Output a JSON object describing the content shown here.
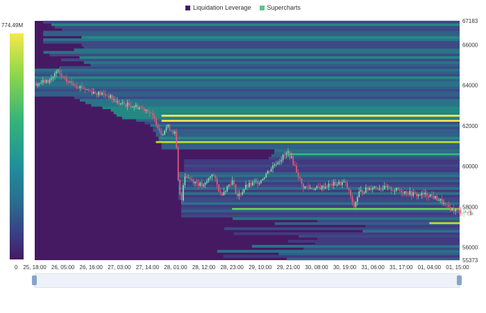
{
  "legend": [
    {
      "label": "Liquidation Leverage",
      "color": "#461a62"
    },
    {
      "label": "Supercharts",
      "color": "#5ec48a"
    }
  ],
  "colorbar": {
    "max_label": "774.49M",
    "min_label": "0"
  },
  "chart_data": {
    "type": "heatmap",
    "title": "",
    "y_labels": [
      "67183",
      "66000",
      "64000",
      "62000",
      "60000",
      "58000",
      "56000",
      "55373"
    ],
    "y_ticks": [
      67183,
      66000,
      64000,
      62000,
      60000,
      58000,
      56000,
      55373
    ],
    "ylim": [
      55373,
      67183
    ],
    "x_labels": [
      "25, 18:00",
      "26, 05:00",
      "26, 16:00",
      "27, 03:00",
      "27, 14:00",
      "28, 01:00",
      "28, 12:00",
      "28, 23:00",
      "29, 10:00",
      "29, 21:00",
      "30, 08:00",
      "30, 19:00",
      "31, 06:00",
      "31, 17:00",
      "01, 04:00",
      "01, 15:00"
    ],
    "colorscale": {
      "min": 0,
      "max": 774.49,
      "unit": "M"
    },
    "price_path": [
      {
        "x": 0,
        "y": 64100
      },
      {
        "x": 0.5,
        "y": 64200
      },
      {
        "x": 0.8,
        "y": 64700
      },
      {
        "x": 1.0,
        "y": 64300
      },
      {
        "x": 1.5,
        "y": 64000
      },
      {
        "x": 2.0,
        "y": 63700
      },
      {
        "x": 2.6,
        "y": 63500
      },
      {
        "x": 3.0,
        "y": 63100
      },
      {
        "x": 3.5,
        "y": 63000
      },
      {
        "x": 4.0,
        "y": 62800
      },
      {
        "x": 4.3,
        "y": 62200
      },
      {
        "x": 4.5,
        "y": 61600
      },
      {
        "x": 4.7,
        "y": 62000
      },
      {
        "x": 5.0,
        "y": 61600
      },
      {
        "x": 5.1,
        "y": 59000
      },
      {
        "x": 5.2,
        "y": 58200
      },
      {
        "x": 5.3,
        "y": 59600
      },
      {
        "x": 5.6,
        "y": 59300
      },
      {
        "x": 6.0,
        "y": 59000
      },
      {
        "x": 6.3,
        "y": 59700
      },
      {
        "x": 6.6,
        "y": 58600
      },
      {
        "x": 7.0,
        "y": 59300
      },
      {
        "x": 7.2,
        "y": 58500
      },
      {
        "x": 7.5,
        "y": 59000
      },
      {
        "x": 8.0,
        "y": 59300
      },
      {
        "x": 8.5,
        "y": 60100
      },
      {
        "x": 9.0,
        "y": 60700
      },
      {
        "x": 9.2,
        "y": 60100
      },
      {
        "x": 9.5,
        "y": 59000
      },
      {
        "x": 10.0,
        "y": 58900
      },
      {
        "x": 10.5,
        "y": 59100
      },
      {
        "x": 11.0,
        "y": 59200
      },
      {
        "x": 11.2,
        "y": 58600
      },
      {
        "x": 11.3,
        "y": 57900
      },
      {
        "x": 11.5,
        "y": 58700
      },
      {
        "x": 12.0,
        "y": 59000
      },
      {
        "x": 12.5,
        "y": 58900
      },
      {
        "x": 13.0,
        "y": 58800
      },
      {
        "x": 13.5,
        "y": 58600
      },
      {
        "x": 14.0,
        "y": 58600
      },
      {
        "x": 14.4,
        "y": 58300
      },
      {
        "x": 14.6,
        "y": 58000
      },
      {
        "x": 15.0,
        "y": 57800
      },
      {
        "x": 15.5,
        "y": 57700
      }
    ],
    "liquidation_bands": [
      {
        "y": 62500,
        "start_x": 4.5,
        "value": 774
      },
      {
        "y": 62250,
        "start_x": 4.5,
        "value": 740
      },
      {
        "y": 61200,
        "start_x": 4.3,
        "value": 700
      },
      {
        "y": 57200,
        "start_x": 14.0,
        "value": 560
      },
      {
        "y": 60600,
        "start_x": 9.0,
        "value": 300
      },
      {
        "y": 57900,
        "start_x": 7.0,
        "value": 350
      }
    ]
  }
}
